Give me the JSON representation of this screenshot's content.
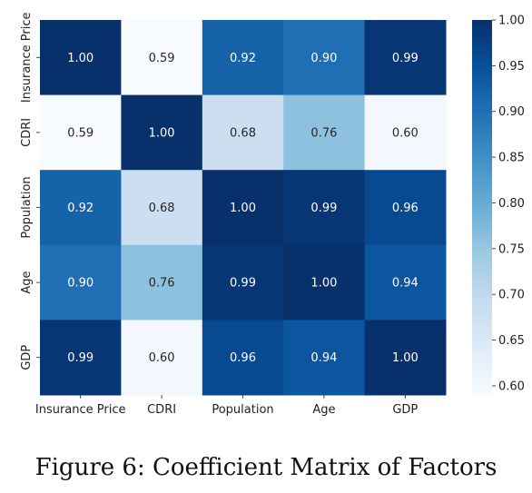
{
  "chart_data": {
    "type": "heatmap",
    "rows": [
      "Insurance Price",
      "CDRI",
      "Population",
      "Age",
      "GDP"
    ],
    "columns": [
      "Insurance Price",
      "CDRI",
      "Population",
      "Age",
      "GDP"
    ],
    "values": [
      [
        1.0,
        0.59,
        0.92,
        0.9,
        0.99
      ],
      [
        0.59,
        1.0,
        0.68,
        0.76,
        0.6
      ],
      [
        0.92,
        0.68,
        1.0,
        0.99,
        0.96
      ],
      [
        0.9,
        0.76,
        0.99,
        1.0,
        0.94
      ],
      [
        0.99,
        0.6,
        0.96,
        0.94,
        1.0
      ]
    ],
    "colormap": "Blues",
    "vmin": 0.59,
    "vmax": 1.0,
    "colorbar_ticks": [
      "1.00",
      "0.95",
      "0.90",
      "0.85",
      "0.80",
      "0.75",
      "0.70",
      "0.65",
      "0.60"
    ],
    "annotation_format": "0.00",
    "title": ""
  },
  "caption": "Figure 6: Coefficient Matrix of Factors"
}
